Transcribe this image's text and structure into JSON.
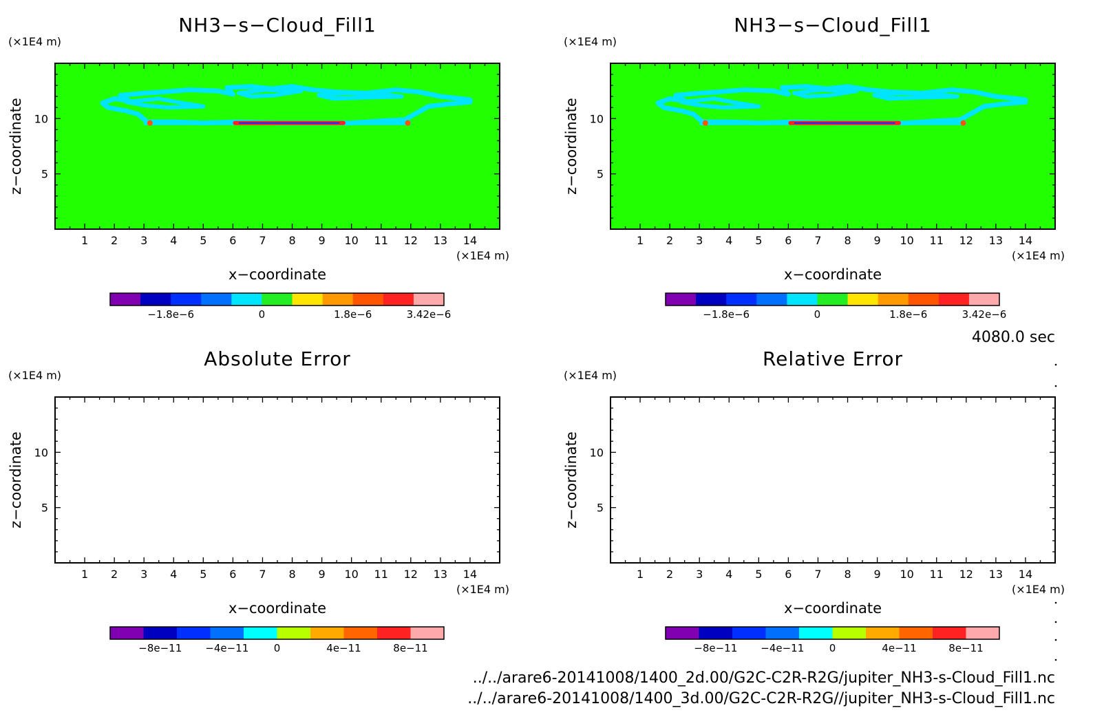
{
  "time_label": "4080.0 sec",
  "file_paths": [
    "../../arare6-20141008/1400_2d.00/G2C-C2R-R2G/jupiter_NH3-s-Cloud_Fill1.nc",
    "../../arare6-20141008/1400_3d.00/G2C-C2R-R2G//jupiter_NH3-s-Cloud_Fill1.nc"
  ],
  "colors": {
    "background_field": "#22ff00",
    "cloud_contour": "#00e5ff",
    "frame": "#000000"
  },
  "chart_data": [
    {
      "type": "heatmap",
      "title": "NH3−s−Cloud_Fill1",
      "xlabel": "x−coordinate",
      "ylabel": "z−coordinate",
      "x_unit": "(×1E4 m)",
      "y_unit": "(×1E4 m)",
      "xlim": [
        0,
        15
      ],
      "ylim": [
        0,
        15
      ],
      "x_ticks": [
        1,
        2,
        3,
        4,
        5,
        6,
        7,
        8,
        9,
        10,
        11,
        12,
        13,
        14
      ],
      "y_ticks": [
        5,
        10
      ],
      "field": "filled",
      "colorbar": {
        "colors": [
          "#7f00b0",
          "#0000c0",
          "#0030ff",
          "#0070ff",
          "#00e5ff",
          "#22ee22",
          "#ffe600",
          "#ff9900",
          "#ff5500",
          "#ff2222",
          "#ffaaaa"
        ],
        "tick_labels": [
          "−1.8e−6",
          "0",
          "1.8e−6",
          "3.42e−6"
        ]
      }
    },
    {
      "type": "heatmap",
      "title": "NH3−s−Cloud_Fill1",
      "xlabel": "x−coordinate",
      "ylabel": "z−coordinate",
      "x_unit": "(×1E4 m)",
      "y_unit": "(×1E4 m)",
      "xlim": [
        0,
        15
      ],
      "ylim": [
        0,
        15
      ],
      "x_ticks": [
        1,
        2,
        3,
        4,
        5,
        6,
        7,
        8,
        9,
        10,
        11,
        12,
        13,
        14
      ],
      "y_ticks": [
        5,
        10
      ],
      "field": "filled",
      "colorbar": {
        "colors": [
          "#7f00b0",
          "#0000c0",
          "#0030ff",
          "#0070ff",
          "#00e5ff",
          "#22ee22",
          "#ffe600",
          "#ff9900",
          "#ff5500",
          "#ff2222",
          "#ffaaaa"
        ],
        "tick_labels": [
          "−1.8e−6",
          "0",
          "1.8e−6",
          "3.42e−6"
        ]
      }
    },
    {
      "type": "heatmap",
      "title": "Absolute Error",
      "xlabel": "x−coordinate",
      "ylabel": "z−coordinate",
      "x_unit": "(×1E4 m)",
      "y_unit": "(×1E4 m)",
      "xlim": [
        0,
        15
      ],
      "ylim": [
        0,
        15
      ],
      "x_ticks": [
        1,
        2,
        3,
        4,
        5,
        6,
        7,
        8,
        9,
        10,
        11,
        12,
        13,
        14
      ],
      "y_ticks": [
        5,
        10
      ],
      "field": "empty",
      "colorbar": {
        "colors": [
          "#7f00b0",
          "#0000c0",
          "#0030ff",
          "#0070ff",
          "#00ffff",
          "#b8ff00",
          "#ffaa00",
          "#ff6600",
          "#ff2222",
          "#ffaaaa"
        ],
        "tick_labels": [
          "−8e−11",
          "−4e−11",
          "0",
          "4e−11",
          "8e−11"
        ]
      }
    },
    {
      "type": "heatmap",
      "title": "Relative Error",
      "xlabel": "x−coordinate",
      "ylabel": "z−coordinate",
      "x_unit": "(×1E4 m)",
      "y_unit": "(×1E4 m)",
      "xlim": [
        0,
        15
      ],
      "ylim": [
        0,
        15
      ],
      "x_ticks": [
        1,
        2,
        3,
        4,
        5,
        6,
        7,
        8,
        9,
        10,
        11,
        12,
        13,
        14
      ],
      "y_ticks": [
        5,
        10
      ],
      "field": "empty",
      "colorbar": {
        "colors": [
          "#7f00b0",
          "#0000c0",
          "#0030ff",
          "#0070ff",
          "#00ffff",
          "#b8ff00",
          "#ffaa00",
          "#ff6600",
          "#ff2222",
          "#ffaaaa"
        ],
        "tick_labels": [
          "−8e−11",
          "−4e−11",
          "0",
          "4e−11",
          "8e−11"
        ]
      }
    }
  ]
}
